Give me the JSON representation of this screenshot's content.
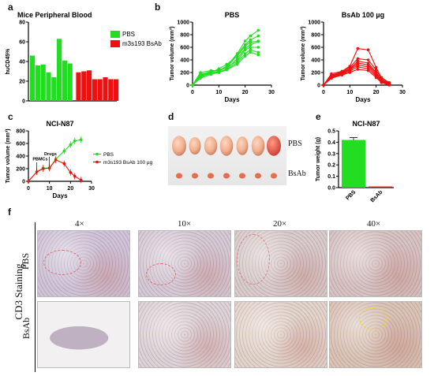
{
  "panel_labels": {
    "a": "a",
    "b": "b",
    "c": "c",
    "d": "d",
    "e": "e",
    "f": "f"
  },
  "chart_data": [
    {
      "id": "a",
      "type": "bar",
      "title": "Mice Peripheral Blood",
      "ylabel": "huCD45%",
      "ylim": [
        0,
        80
      ],
      "yticks": [
        0,
        20,
        40,
        60,
        80
      ],
      "grid": false,
      "legend": "top-right",
      "series": [
        {
          "name": "PBS",
          "color": "#22dd22",
          "values": [
            46,
            36,
            37,
            29,
            24,
            63,
            41,
            38
          ]
        },
        {
          "name": "m3s193 BsAb",
          "color": "#ee1111",
          "values": [
            29,
            30,
            31,
            22,
            22,
            24,
            22,
            22
          ]
        }
      ]
    },
    {
      "id": "b1",
      "type": "line",
      "title": "PBS",
      "xlabel": "Days",
      "ylabel": "Tumor volume (mm³)",
      "xlim": [
        0,
        30
      ],
      "ylim": [
        0,
        1000
      ],
      "xticks": [
        0,
        10,
        20,
        30
      ],
      "yticks": [
        0,
        200,
        400,
        600,
        800,
        1000
      ],
      "color": "#22dd22",
      "x": [
        0,
        3,
        7,
        10,
        13,
        17,
        20,
        22,
        25
      ],
      "series": [
        {
          "values": [
            0,
            200,
            230,
            230,
            300,
            500,
            700,
            780,
            870
          ]
        },
        {
          "values": [
            0,
            160,
            220,
            240,
            280,
            480,
            640,
            720,
            780
          ]
        },
        {
          "values": [
            0,
            150,
            200,
            260,
            330,
            460,
            620,
            680,
            700
          ]
        },
        {
          "values": [
            0,
            140,
            180,
            200,
            260,
            420,
            580,
            640,
            690
          ]
        },
        {
          "values": [
            0,
            180,
            200,
            220,
            290,
            380,
            560,
            600,
            600
          ]
        },
        {
          "values": [
            0,
            120,
            200,
            210,
            250,
            360,
            500,
            560,
            520
          ]
        },
        {
          "values": [
            0,
            110,
            170,
            200,
            240,
            330,
            460,
            520,
            480
          ]
        }
      ]
    },
    {
      "id": "b2",
      "type": "line",
      "title": "BsAb 100 µg",
      "xlabel": "Days",
      "ylabel": "Tumor volume (mm³)",
      "xlim": [
        0,
        30
      ],
      "ylim": [
        0,
        1000
      ],
      "xticks": [
        0,
        10,
        20,
        30
      ],
      "yticks": [
        0,
        200,
        400,
        600,
        800,
        1000
      ],
      "color": "#ee1111",
      "x": [
        0,
        3,
        7,
        10,
        13,
        17,
        20,
        22,
        25
      ],
      "series": [
        {
          "values": [
            0,
            180,
            220,
            300,
            580,
            560,
            280,
            120,
            40
          ]
        },
        {
          "values": [
            0,
            160,
            210,
            280,
            420,
            400,
            240,
            100,
            30
          ]
        },
        {
          "values": [
            0,
            150,
            200,
            260,
            380,
            350,
            200,
            80,
            20
          ]
        },
        {
          "values": [
            0,
            140,
            190,
            250,
            350,
            320,
            180,
            70,
            10
          ]
        },
        {
          "values": [
            0,
            130,
            180,
            240,
            320,
            290,
            160,
            60,
            10
          ]
        },
        {
          "values": [
            0,
            120,
            170,
            220,
            290,
            260,
            140,
            50,
            5
          ]
        },
        {
          "values": [
            0,
            110,
            160,
            200,
            250,
            230,
            120,
            40,
            0
          ]
        }
      ]
    },
    {
      "id": "c",
      "type": "line",
      "title": "NCI-N87",
      "xlabel": "Days",
      "ylabel": "Tumor volume (mm³)",
      "xlim": [
        0,
        30
      ],
      "ylim": [
        0,
        800
      ],
      "xticks": [
        0,
        10,
        20,
        30
      ],
      "yticks": [
        0,
        200,
        400,
        600,
        800
      ],
      "legend": "right",
      "annotations": [
        "PBMCs",
        "Drugs"
      ],
      "series": [
        {
          "name": "PBS",
          "color": "#22dd22",
          "x": [
            0,
            4,
            7,
            10,
            13,
            17,
            20,
            22,
            25
          ],
          "values": [
            0,
            150,
            210,
            210,
            350,
            480,
            580,
            640,
            660
          ]
        },
        {
          "name": "m3s193 BsAb 100 µg",
          "color": "#ee1111",
          "x": [
            0,
            4,
            7,
            10,
            13,
            17,
            20,
            22,
            25
          ],
          "values": [
            0,
            150,
            200,
            210,
            340,
            280,
            140,
            80,
            20
          ]
        }
      ]
    },
    {
      "id": "e",
      "type": "bar",
      "title": "NCI-N87",
      "ylabel": "Tumor weight (g)",
      "ylim": [
        0,
        0.5
      ],
      "yticks": [
        0.0,
        0.1,
        0.2,
        0.3,
        0.4,
        0.5
      ],
      "categories": [
        "PBS",
        "BsAb"
      ],
      "values": [
        0.42,
        0.01
      ],
      "colors": [
        "#22dd22",
        "#ee1111"
      ]
    }
  ],
  "panel_d": {
    "row_labels": [
      "PBS",
      "BsAb"
    ]
  },
  "panel_f": {
    "side_title": "CD3 Staining",
    "row_labels": [
      "PBS",
      "BsAb"
    ],
    "column_labels": [
      "4×",
      "10×",
      "20×",
      "40×"
    ]
  }
}
